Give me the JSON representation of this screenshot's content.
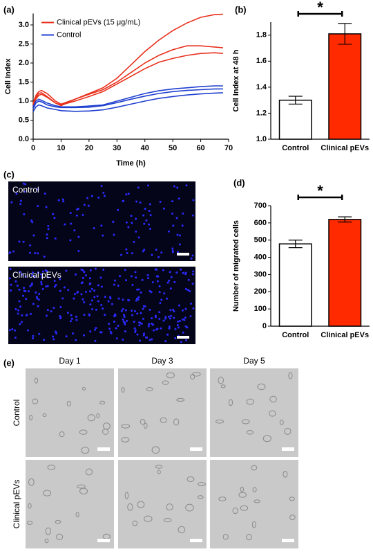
{
  "chart_data": [
    {
      "type": "line",
      "panel_label": "(a)",
      "x_label": "Time (h)",
      "y_label": "Cell Index",
      "x": [
        0,
        1,
        2,
        3,
        5,
        8,
        10,
        15,
        20,
        25,
        30,
        35,
        40,
        45,
        50,
        55,
        60,
        65,
        68
      ],
      "series": [
        {
          "name": "Clinical pEVs (15 μg/mL)",
          "color": "#e8301c",
          "runs": [
            [
              0.95,
              1.15,
              1.25,
              1.28,
              1.2,
              1.0,
              0.92,
              1.05,
              1.2,
              1.35,
              1.6,
              1.95,
              2.3,
              2.6,
              2.85,
              3.05,
              3.2,
              3.27,
              3.28
            ],
            [
              0.9,
              1.05,
              1.15,
              1.18,
              1.1,
              0.95,
              0.88,
              1.05,
              1.18,
              1.3,
              1.5,
              1.75,
              2.0,
              2.2,
              2.35,
              2.45,
              2.45,
              2.42,
              2.4
            ],
            [
              0.92,
              1.1,
              1.2,
              1.22,
              1.12,
              0.95,
              0.9,
              1.0,
              1.12,
              1.25,
              1.45,
              1.65,
              1.85,
              2.02,
              2.12,
              2.2,
              2.25,
              2.27,
              2.25
            ]
          ]
        },
        {
          "name": "Control",
          "color": "#1f3fd0",
          "runs": [
            [
              0.85,
              1.0,
              1.05,
              1.02,
              0.95,
              0.88,
              0.85,
              0.85,
              0.87,
              0.9,
              1.0,
              1.1,
              1.2,
              1.27,
              1.32,
              1.35,
              1.38,
              1.4,
              1.4
            ],
            [
              0.8,
              0.95,
              1.0,
              0.98,
              0.9,
              0.85,
              0.83,
              0.83,
              0.84,
              0.88,
              0.96,
              1.05,
              1.13,
              1.2,
              1.25,
              1.28,
              1.3,
              1.32,
              1.32
            ],
            [
              0.72,
              0.85,
              0.9,
              0.88,
              0.82,
              0.78,
              0.75,
              0.73,
              0.74,
              0.77,
              0.84,
              0.92,
              1.0,
              1.07,
              1.12,
              1.16,
              1.19,
              1.21,
              1.22
            ]
          ]
        }
      ],
      "xlim": [
        0,
        70
      ],
      "xticks": [
        0,
        10,
        20,
        30,
        40,
        50,
        60,
        70
      ],
      "ylim": [
        0,
        3.3
      ],
      "yticks": [
        {
          "value": 0,
          "label": "0.0"
        },
        {
          "value": 0.5,
          "label": "0.5"
        },
        {
          "value": 1,
          "label": "1.0"
        },
        {
          "value": 1.5,
          "label": "1.5"
        },
        {
          "value": 2,
          "label": "2.0"
        },
        {
          "value": 2.5,
          "label": "2.5"
        },
        {
          "value": 3,
          "label": "3.0"
        }
      ],
      "legend": "upper left"
    },
    {
      "type": "bar",
      "panel_label": "(b)",
      "y_label": "Cell Index at 48 h",
      "annotation": "*",
      "categories": [
        "Control",
        "Clinical pEVs"
      ],
      "values": [
        1.3,
        1.81
      ],
      "errors": [
        0.03,
        0.08
      ],
      "colors": [
        "#ffffff",
        "#ff2a00"
      ],
      "ylim": [
        1.0,
        1.9
      ],
      "yticks": [
        {
          "value": 1,
          "label": "1.0"
        },
        {
          "value": 1.2,
          "label": "1.2"
        },
        {
          "value": 1.4,
          "label": "1.4"
        },
        {
          "value": 1.6,
          "label": "1.6"
        },
        {
          "value": 1.8,
          "label": "1.8"
        }
      ]
    },
    {
      "type": "bar",
      "panel_label": "(d)",
      "y_label": "Number of migrated cells",
      "annotation": "*",
      "categories": [
        "Control",
        "Clinical pEVs"
      ],
      "values": [
        478,
        620
      ],
      "errors": [
        22,
        15
      ],
      "colors": [
        "#ffffff",
        "#ff2a00"
      ],
      "ylim": [
        0,
        700
      ],
      "yticks": [
        0,
        100,
        200,
        300,
        400,
        500,
        600,
        700
      ]
    }
  ],
  "panel_c": {
    "label": "(c)",
    "images": [
      {
        "label": "Control"
      },
      {
        "label": "Clinical pEVs"
      }
    ]
  },
  "panel_e": {
    "label": "(e)",
    "columns": [
      "Day 1",
      "Day 3",
      "Day 5"
    ],
    "rows": [
      "Control",
      "Clinical pEVs"
    ]
  }
}
